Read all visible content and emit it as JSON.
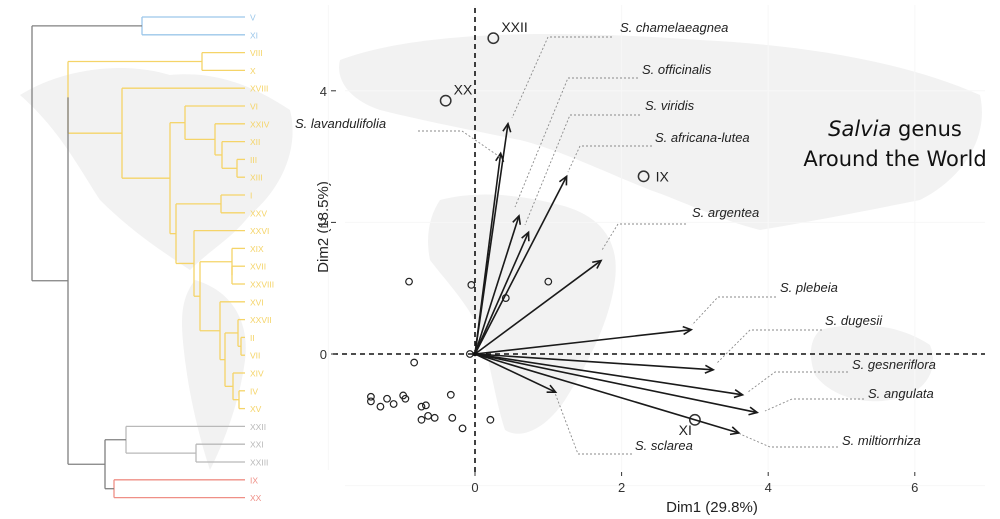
{
  "title": {
    "italic_part": "Salvia",
    "line1_rest": " genus",
    "line2": "Around the World"
  },
  "colors": {
    "cluster_blue": "#9cc7ea",
    "cluster_yellow": "#f5d468",
    "cluster_gray": "#b9b9b9",
    "cluster_red": "#ef8f86",
    "root_gray": "#808080",
    "map_fill": "#f2f2f2",
    "arrow": "#1a1a1a"
  },
  "dendrogram": {
    "leaves": [
      {
        "label": "V",
        "cluster": "blue"
      },
      {
        "label": "XI",
        "cluster": "blue"
      },
      {
        "label": "VIII",
        "cluster": "yellow"
      },
      {
        "label": "X",
        "cluster": "yellow"
      },
      {
        "label": "XVIII",
        "cluster": "yellow"
      },
      {
        "label": "VI",
        "cluster": "yellow"
      },
      {
        "label": "XXIV",
        "cluster": "yellow"
      },
      {
        "label": "XII",
        "cluster": "yellow"
      },
      {
        "label": "III",
        "cluster": "yellow"
      },
      {
        "label": "XIII",
        "cluster": "yellow"
      },
      {
        "label": "I",
        "cluster": "yellow"
      },
      {
        "label": "XXV",
        "cluster": "yellow"
      },
      {
        "label": "XXVI",
        "cluster": "yellow"
      },
      {
        "label": "XIX",
        "cluster": "yellow"
      },
      {
        "label": "XVII",
        "cluster": "yellow"
      },
      {
        "label": "XXVIII",
        "cluster": "yellow"
      },
      {
        "label": "XVI",
        "cluster": "yellow"
      },
      {
        "label": "XXVII",
        "cluster": "yellow"
      },
      {
        "label": "II",
        "cluster": "yellow"
      },
      {
        "label": "VII",
        "cluster": "yellow"
      },
      {
        "label": "XIV",
        "cluster": "yellow"
      },
      {
        "label": "IV",
        "cluster": "yellow"
      },
      {
        "label": "XV",
        "cluster": "yellow"
      },
      {
        "label": "XXII",
        "cluster": "gray"
      },
      {
        "label": "XXI",
        "cluster": "gray"
      },
      {
        "label": "XXIII",
        "cluster": "gray"
      },
      {
        "label": "IX",
        "cluster": "red"
      },
      {
        "label": "XX",
        "cluster": "red"
      }
    ]
  },
  "chart_data": {
    "type": "scatter",
    "subtype": "pca-biplot",
    "xlabel": "Dim1 (29.8%)",
    "ylabel": "Dim2 (18.5%)",
    "xlim": [
      -2.7,
      7.0
    ],
    "ylim": [
      -2.5,
      5.1
    ],
    "x_ticks": [
      0,
      2,
      4,
      6
    ],
    "y_ticks": [
      0,
      2,
      4
    ],
    "reference_lines": {
      "x": 0,
      "y": 0,
      "style": "dashed"
    },
    "labeled_points": [
      {
        "label": "XXII",
        "x": 0.25,
        "y": 4.8
      },
      {
        "label": "XX",
        "x": -0.4,
        "y": 3.85
      },
      {
        "label": "IX",
        "x": 2.3,
        "y": 2.7
      },
      {
        "label": "XI",
        "x": 3.0,
        "y": -1.0
      }
    ],
    "points": [
      {
        "x": -0.9,
        "y": 1.1
      },
      {
        "x": -0.05,
        "y": 1.05
      },
      {
        "x": 1.0,
        "y": 1.1
      },
      {
        "x": 0.42,
        "y": 0.85
      },
      {
        "x": -0.83,
        "y": -0.13
      },
      {
        "x": -1.42,
        "y": -0.65
      },
      {
        "x": -1.42,
        "y": -0.72
      },
      {
        "x": -1.29,
        "y": -0.8
      },
      {
        "x": -1.2,
        "y": -0.68
      },
      {
        "x": -1.11,
        "y": -0.76
      },
      {
        "x": -0.98,
        "y": -0.63
      },
      {
        "x": -0.95,
        "y": -0.68
      },
      {
        "x": -0.73,
        "y": -0.8
      },
      {
        "x": -0.67,
        "y": -0.78
      },
      {
        "x": -0.64,
        "y": -0.94
      },
      {
        "x": -0.73,
        "y": -1.0
      },
      {
        "x": -0.55,
        "y": -0.97
      },
      {
        "x": -0.33,
        "y": -0.62
      },
      {
        "x": -0.31,
        "y": -0.97
      },
      {
        "x": -0.17,
        "y": -1.13
      },
      {
        "x": 0.21,
        "y": -1.0
      },
      {
        "x": -0.07,
        "y": 0.0
      }
    ],
    "arrows": [
      {
        "label": "S. chamelaeagnea",
        "x": 0.45,
        "y": 3.5
      },
      {
        "label": "S. lavandulifolia",
        "x": 0.35,
        "y": 3.05
      },
      {
        "label": "S. officinalis",
        "x": 0.6,
        "y": 2.1
      },
      {
        "label": "S. viridis",
        "x": 0.73,
        "y": 1.85
      },
      {
        "label": "S. africana-lutea",
        "x": 1.25,
        "y": 2.7
      },
      {
        "label": "S. argentea",
        "x": 1.72,
        "y": 1.42
      },
      {
        "label": "S. plebeia",
        "x": 2.95,
        "y": 0.37
      },
      {
        "label": "S. dugesii",
        "x": 3.25,
        "y": -0.24
      },
      {
        "label": "S. gesneriflora",
        "x": 3.65,
        "y": -0.62
      },
      {
        "label": "S. angulata",
        "x": 3.85,
        "y": -0.89
      },
      {
        "label": "S. miltiorrhiza",
        "x": 3.6,
        "y": -1.2
      },
      {
        "label": "S. sclarea",
        "x": 1.1,
        "y": -0.58
      }
    ]
  }
}
